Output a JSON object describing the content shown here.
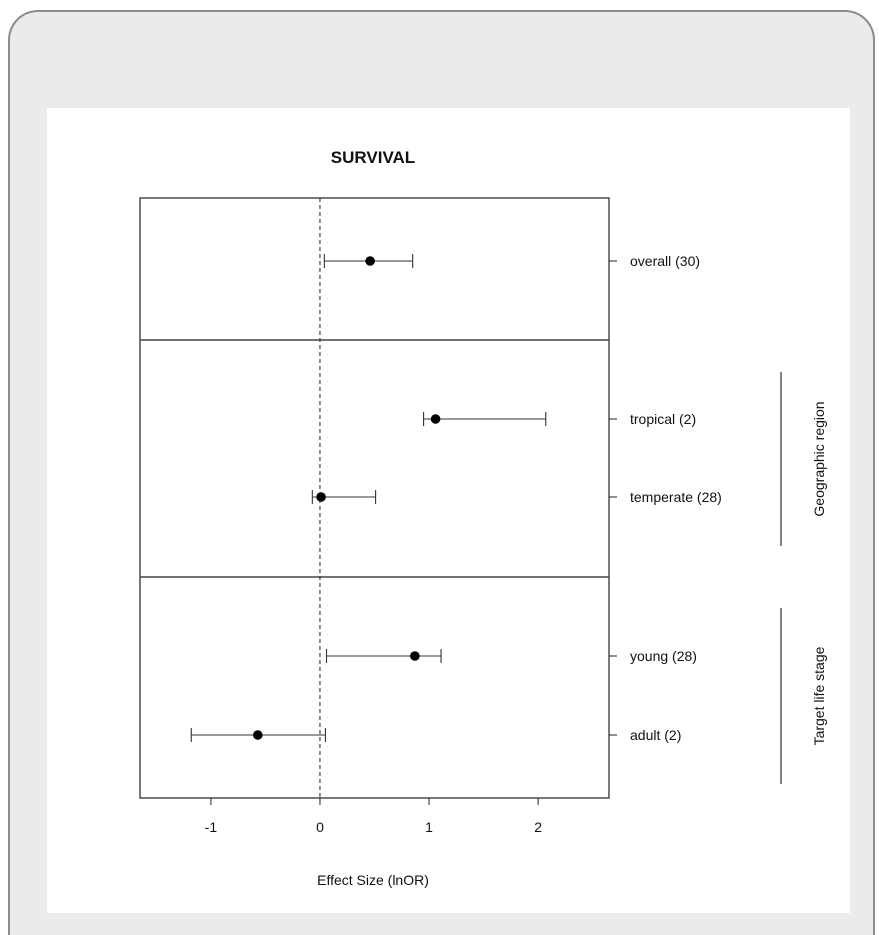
{
  "chart_data": {
    "type": "forest",
    "title": "SURVIVAL",
    "xlabel": "Effect Size (lnOR)",
    "xlim": [
      -1.65,
      2.65
    ],
    "xticks": [
      -1,
      0,
      1,
      2
    ],
    "xtick_labels": [
      "-1",
      "0",
      "1",
      "2"
    ],
    "reference_line": 0,
    "rows": [
      {
        "label": "overall (30)",
        "estimate": 0.46,
        "ci_low": 0.04,
        "ci_high": 0.85,
        "panel": 0,
        "slot": 0
      },
      {
        "label": "tropical (2)",
        "estimate": 1.06,
        "ci_low": 0.95,
        "ci_high": 2.07,
        "panel": 1,
        "slot": 0
      },
      {
        "label": "temperate (28)",
        "estimate": 0.01,
        "ci_low": -0.07,
        "ci_high": 0.51,
        "panel": 1,
        "slot": 1
      },
      {
        "label": "young (28)",
        "estimate": 0.87,
        "ci_low": 0.06,
        "ci_high": 1.11,
        "panel": 2,
        "slot": 0
      },
      {
        "label": "adult (2)",
        "estimate": -0.57,
        "ci_low": -1.18,
        "ci_high": 0.05,
        "panel": 2,
        "slot": 1
      }
    ],
    "groups": [
      {
        "label": "Geographic region",
        "rows": [
          "tropical (2)",
          "temperate (28)"
        ]
      },
      {
        "label": "Target life stage",
        "rows": [
          "young (28)",
          "adult (2)"
        ]
      }
    ]
  }
}
